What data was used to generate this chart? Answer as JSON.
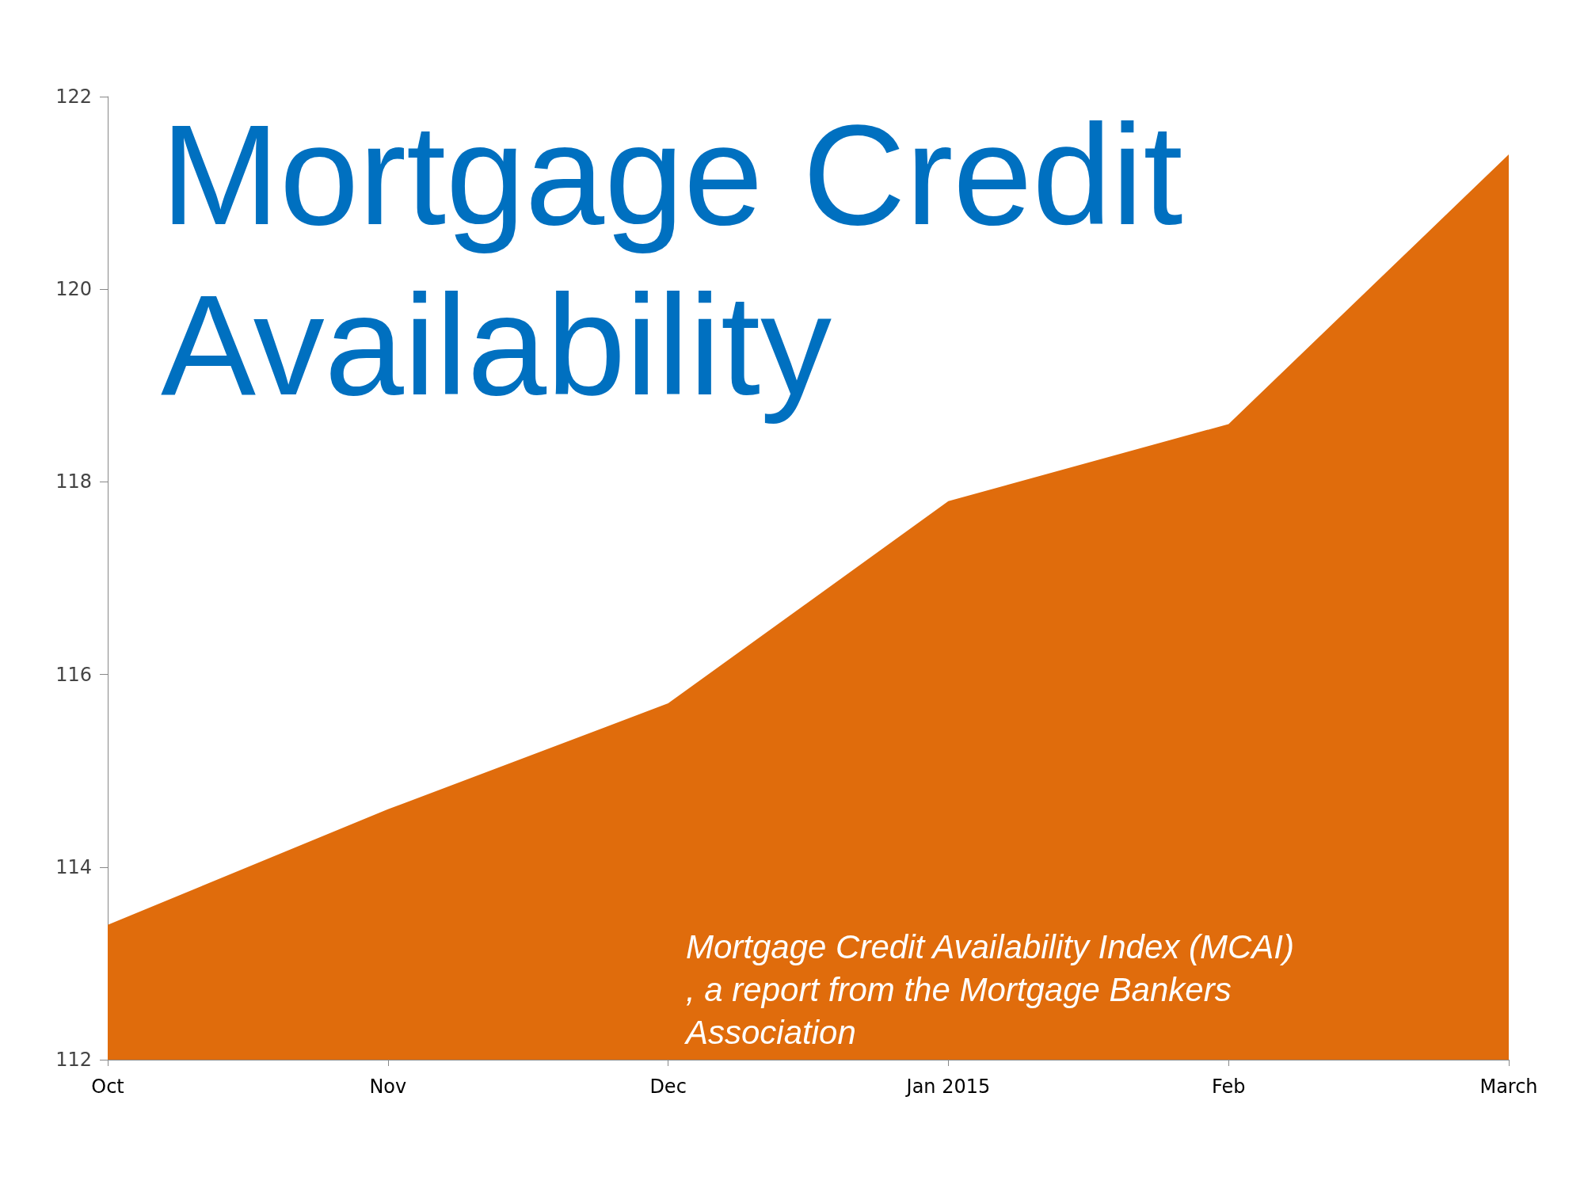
{
  "chart_data": {
    "type": "area",
    "title": "Mortgage Credit Availability",
    "categories": [
      "Oct",
      "Nov",
      "Dec",
      "Jan 2015",
      "Feb",
      "March"
    ],
    "values": [
      113.4,
      114.6,
      115.7,
      117.8,
      118.6,
      121.4
    ],
    "color": "#e06c0c",
    "ylim": [
      112,
      122
    ],
    "yticks": [
      112,
      114,
      116,
      118,
      120,
      122
    ],
    "grid": false,
    "annotations": [
      "Mortgage Credit Availability Index (MCAI), a report from the Mortgage Bankers Association"
    ]
  }
}
